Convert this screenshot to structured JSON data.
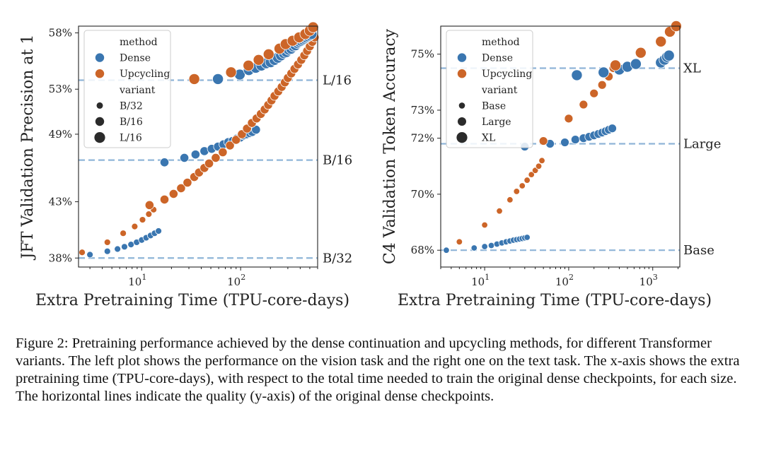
{
  "colors": {
    "dense": "#3a76b0",
    "upcycling": "#cc6528",
    "ref_line": "#8fb5d8"
  },
  "caption": "Figure 2: Pretraining performance achieved by the dense continuation and upcycling methods, for different Transformer variants. The left plot shows the performance on the vision task and the right one on the text task. The x-axis shows the extra pretraining time (TPU-core-days), with respect to the total time needed to train the original dense checkpoints, for each size. The horizontal lines indicate the quality (y-axis) of the original dense checkpoints.",
  "chart_data": [
    {
      "type": "scatter",
      "xscale": "log",
      "xlim": [
        2.3,
        600
      ],
      "ylim": [
        37.2,
        58.6
      ],
      "xlabel": "Extra Pretraining Time (TPU-core-days)",
      "ylabel": "JFT Validation Precision at 1",
      "ytick_values": [
        38,
        43,
        49,
        53,
        58
      ],
      "ytick_labels": [
        "38%",
        "43%",
        "49%",
        "53%",
        "58%"
      ],
      "xticks": [
        {
          "value": 10,
          "base": "10",
          "exp": "1"
        },
        {
          "value": 100,
          "base": "10",
          "exp": "2"
        }
      ],
      "legend": {
        "position": "upper-left",
        "method_title": "method",
        "methods": [
          "Dense",
          "Upcycling"
        ],
        "variant_title": "variant",
        "variants": [
          "B/32",
          "B/16",
          "L/16"
        ]
      },
      "reference_lines": [
        {
          "label": "L/16",
          "y": 53.8
        },
        {
          "label": "B/16",
          "y": 46.7
        },
        {
          "label": "B/32",
          "y": 38.0
        }
      ],
      "series": [
        {
          "method": "Dense",
          "variant": "B/32",
          "x": [
            3.0,
            4.5,
            5.7,
            6.7,
            7.8,
            8.9,
            10.0,
            11.1,
            12.3,
            13.5,
            14.8
          ],
          "y": [
            38.3,
            38.6,
            38.8,
            39.0,
            39.2,
            39.4,
            39.6,
            39.8,
            40.0,
            40.2,
            40.4
          ]
        },
        {
          "method": "Upcycling",
          "variant": "B/32",
          "x": [
            2.5,
            4.5,
            6.5,
            8.5,
            10.2,
            11.8,
            13.2
          ],
          "y": [
            38.5,
            39.4,
            40.2,
            40.8,
            41.4,
            41.9,
            42.3
          ]
        },
        {
          "method": "Dense",
          "variant": "B/16",
          "x": [
            17,
            27,
            35,
            43,
            51,
            59,
            67,
            75,
            83,
            91,
            99,
            107,
            115,
            123,
            131,
            143
          ],
          "y": [
            46.5,
            46.9,
            47.2,
            47.5,
            47.7,
            47.9,
            48.1,
            48.3,
            48.4,
            48.6,
            48.7,
            48.9,
            49.0,
            49.1,
            49.2,
            49.4
          ]
        },
        {
          "method": "Upcycling",
          "variant": "B/16",
          "x": [
            12,
            17,
            21,
            25,
            29,
            34,
            38,
            43,
            48,
            56,
            66,
            78,
            90,
            103,
            116,
            130,
            145,
            160,
            175,
            190,
            205,
            220,
            240,
            260,
            280,
            300,
            325,
            350,
            380,
            410,
            440,
            470,
            500,
            530,
            560
          ],
          "y": [
            42.7,
            43.2,
            43.7,
            44.2,
            44.7,
            45.2,
            45.6,
            46.0,
            46.4,
            46.9,
            47.4,
            48.0,
            48.5,
            49.0,
            49.5,
            50.0,
            50.4,
            50.8,
            51.2,
            51.6,
            52.0,
            52.4,
            52.8,
            53.2,
            53.6,
            54.0,
            54.4,
            54.8,
            55.2,
            55.6,
            56.0,
            56.4,
            56.8,
            57.2,
            57.6
          ]
        },
        {
          "method": "Dense",
          "variant": "L/16",
          "x": [
            59,
            98,
            121,
            142,
            162,
            182,
            201,
            220,
            238,
            256,
            273,
            290,
            307,
            324,
            341,
            358,
            375,
            392,
            409,
            426,
            443,
            460,
            480,
            500,
            520
          ],
          "y": [
            53.9,
            54.3,
            54.7,
            54.9,
            55.1,
            55.3,
            55.4,
            55.6,
            55.8,
            56.0,
            56.2,
            56.3,
            56.5,
            56.6,
            56.8,
            56.9,
            57.1,
            57.2,
            57.3,
            57.4,
            57.5,
            57.6,
            57.7,
            57.8,
            57.9
          ]
        },
        {
          "method": "Upcycling",
          "variant": "L/16",
          "x": [
            34,
            80,
            120,
            152,
            192,
            247,
            285,
            335,
            390,
            450,
            500,
            540
          ],
          "y": [
            53.9,
            54.5,
            55.1,
            55.6,
            56.1,
            56.6,
            57.0,
            57.3,
            57.6,
            57.9,
            58.2,
            58.5
          ]
        }
      ]
    },
    {
      "type": "scatter",
      "xscale": "log",
      "xlim": [
        3.0,
        2100
      ],
      "ylim": [
        67.4,
        76.0
      ],
      "xlabel": "Extra Pretraining Time (TPU-core-days)",
      "ylabel": "C4 Validation Token Accuracy",
      "ytick_values": [
        68,
        70,
        72,
        73,
        75
      ],
      "ytick_labels": [
        "68%",
        "70%",
        "72%",
        "73%",
        "75%"
      ],
      "xticks": [
        {
          "value": 10,
          "base": "10",
          "exp": "1"
        },
        {
          "value": 100,
          "base": "10",
          "exp": "2"
        },
        {
          "value": 1000,
          "base": "10",
          "exp": "3"
        }
      ],
      "legend": {
        "position": "upper-left",
        "method_title": "method",
        "methods": [
          "Dense",
          "Upcycling"
        ],
        "variant_title": "variant",
        "variants": [
          "Base",
          "Large",
          "XL"
        ]
      },
      "reference_lines": [
        {
          "label": "XL",
          "y": 74.5
        },
        {
          "label": "Large",
          "y": 71.8
        },
        {
          "label": "Base",
          "y": 68.0
        }
      ],
      "series": [
        {
          "method": "Dense",
          "variant": "Base",
          "x": [
            3.5,
            7.5,
            10,
            12,
            14,
            16,
            18,
            20,
            22,
            24,
            26,
            28,
            30,
            32
          ],
          "y": [
            68.0,
            68.08,
            68.13,
            68.17,
            68.22,
            68.26,
            68.3,
            68.33,
            68.36,
            68.38,
            68.4,
            68.42,
            68.44,
            68.46
          ]
        },
        {
          "method": "Upcycling",
          "variant": "Base",
          "x": [
            5,
            10,
            15,
            20,
            24,
            28,
            32,
            36,
            40,
            44,
            48
          ],
          "y": [
            68.3,
            68.9,
            69.4,
            69.8,
            70.1,
            70.3,
            70.5,
            70.7,
            70.85,
            71.0,
            71.2
          ]
        },
        {
          "method": "Dense",
          "variant": "Large",
          "x": [
            30,
            60,
            90,
            120,
            150,
            175,
            200,
            225,
            250,
            275,
            300,
            330
          ],
          "y": [
            71.7,
            71.8,
            71.85,
            71.95,
            72.0,
            72.05,
            72.1,
            72.15,
            72.2,
            72.25,
            72.3,
            72.35
          ]
        },
        {
          "method": "Upcycling",
          "variant": "Large",
          "x": [
            50,
            100,
            150,
            200,
            250,
            300,
            340
          ],
          "y": [
            71.9,
            72.7,
            73.2,
            73.6,
            73.9,
            74.2,
            74.5
          ]
        },
        {
          "method": "Dense",
          "variant": "XL",
          "x": [
            125,
            260,
            400,
            500,
            630,
            1250,
            1380,
            1480,
            1560
          ],
          "y": [
            74.25,
            74.35,
            74.45,
            74.55,
            74.65,
            74.7,
            74.8,
            74.9,
            74.95
          ]
        },
        {
          "method": "Upcycling",
          "variant": "XL",
          "x": [
            360,
            720,
            1250,
            1600,
            1900
          ],
          "y": [
            74.6,
            75.05,
            75.45,
            75.8,
            76.0
          ]
        }
      ]
    }
  ]
}
